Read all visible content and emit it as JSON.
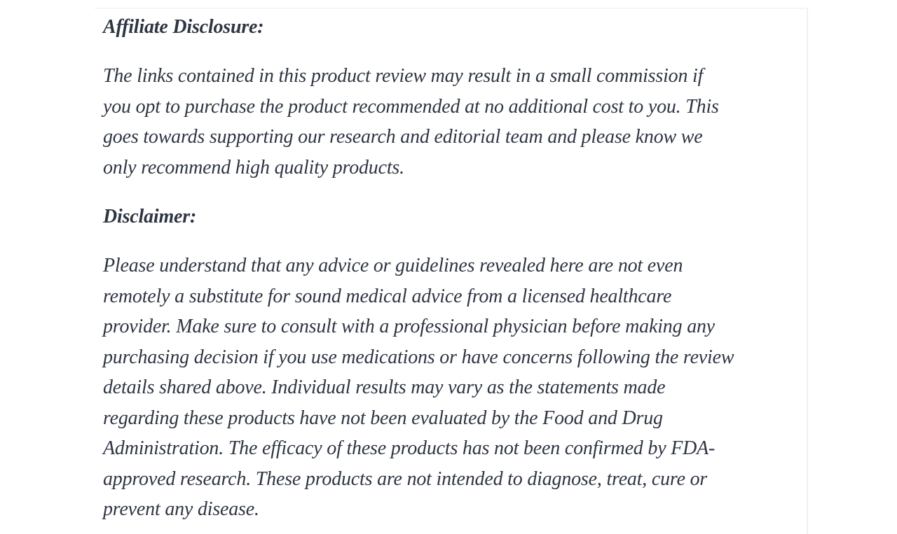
{
  "colors": {
    "page_background": "#ffffff",
    "text": "#2e3542",
    "card_top_border": "#f6f6f6",
    "card_right_border": "#f0f0f0"
  },
  "article": {
    "sections": [
      {
        "heading": "Affiliate Disclosure:",
        "lines": [
          "The links contained in this product review may result in a small commission if",
          "you opt to purchase the product recommended at no additional cost to you. This",
          "goes towards supporting our research and editorial team and please know we",
          "only recommend high quality products."
        ]
      },
      {
        "heading": "Disclaimer:",
        "lines": [
          "Please understand that any advice or guidelines revealed here are not even",
          "remotely a substitute for sound medical advice from a licensed healthcare",
          "provider. Make sure to consult with a professional physician before making any",
          "purchasing decision if you use medications or have concerns following the review",
          "details shared above. Individual results may vary as the statements made",
          "regarding these products have not been evaluated by the Food and Drug",
          "Administration. The efficacy of these products has not been confirmed by FDA-",
          "approved research. These products are not intended to diagnose, treat, cure or",
          "prevent any disease."
        ]
      }
    ]
  }
}
